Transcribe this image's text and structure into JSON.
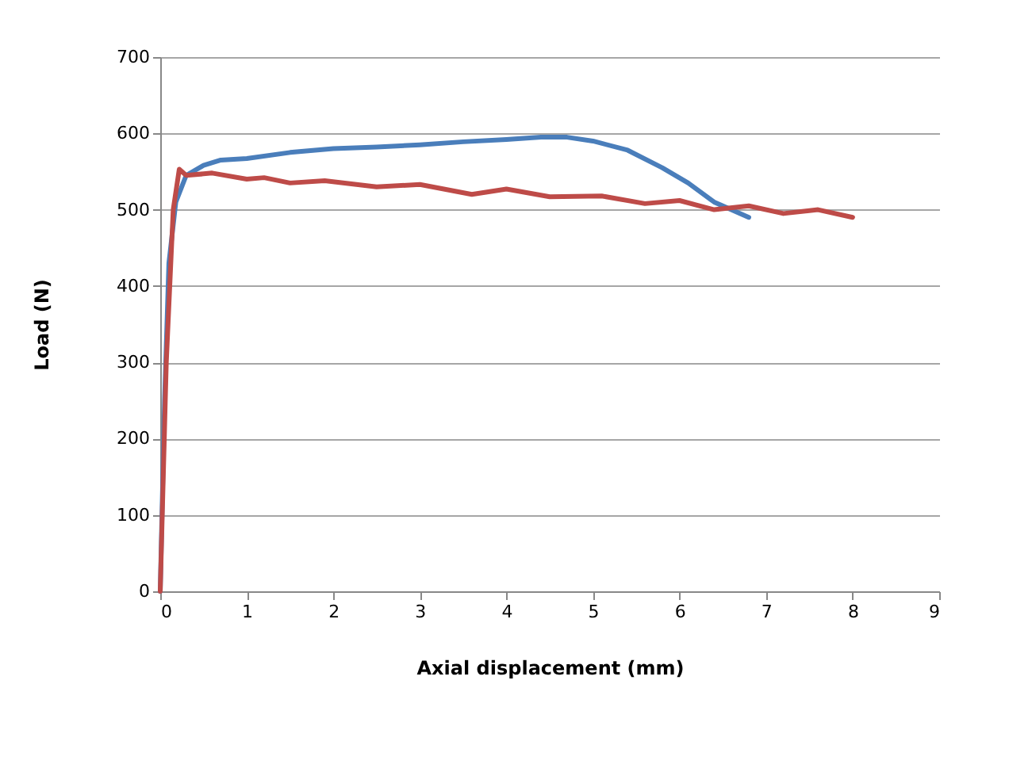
{
  "chart_data": {
    "type": "line",
    "xlabel": "Axial displacement (mm)",
    "ylabel": "Load (N)",
    "xlim": [
      0,
      9
    ],
    "xticks": [
      0,
      1,
      2,
      3,
      4,
      5,
      6,
      7,
      8,
      9
    ],
    "ylim": [
      0,
      700
    ],
    "yticks": [
      0,
      100,
      200,
      300,
      400,
      500,
      600,
      700
    ],
    "grid": "y",
    "marker": "none",
    "line_style": "solid",
    "series": [
      {
        "color": "#4a7ebb",
        "x": [
          0,
          0.05,
          0.1,
          0.18,
          0.3,
          0.5,
          0.7,
          1.0,
          1.5,
          2.0,
          2.5,
          3.0,
          3.5,
          4.0,
          4.4,
          4.7,
          5.0,
          5.4,
          5.8,
          6.1,
          6.4,
          6.8
        ],
        "values": [
          0,
          250,
          430,
          510,
          545,
          558,
          565,
          567,
          575,
          580,
          582,
          585,
          589,
          592,
          595,
          595,
          590,
          578,
          555,
          535,
          510,
          490
        ]
      },
      {
        "color": "#be4b48",
        "x": [
          0,
          0.07,
          0.15,
          0.22,
          0.3,
          0.6,
          1.0,
          1.2,
          1.5,
          1.9,
          2.5,
          3.0,
          3.6,
          4.0,
          4.5,
          5.1,
          5.6,
          6.0,
          6.4,
          6.8,
          7.2,
          7.6,
          8.0
        ],
        "values": [
          0,
          300,
          500,
          553,
          545,
          548,
          540,
          542,
          535,
          538,
          530,
          533,
          520,
          527,
          517,
          518,
          508,
          512,
          500,
          505,
          495,
          500,
          490
        ]
      }
    ]
  }
}
